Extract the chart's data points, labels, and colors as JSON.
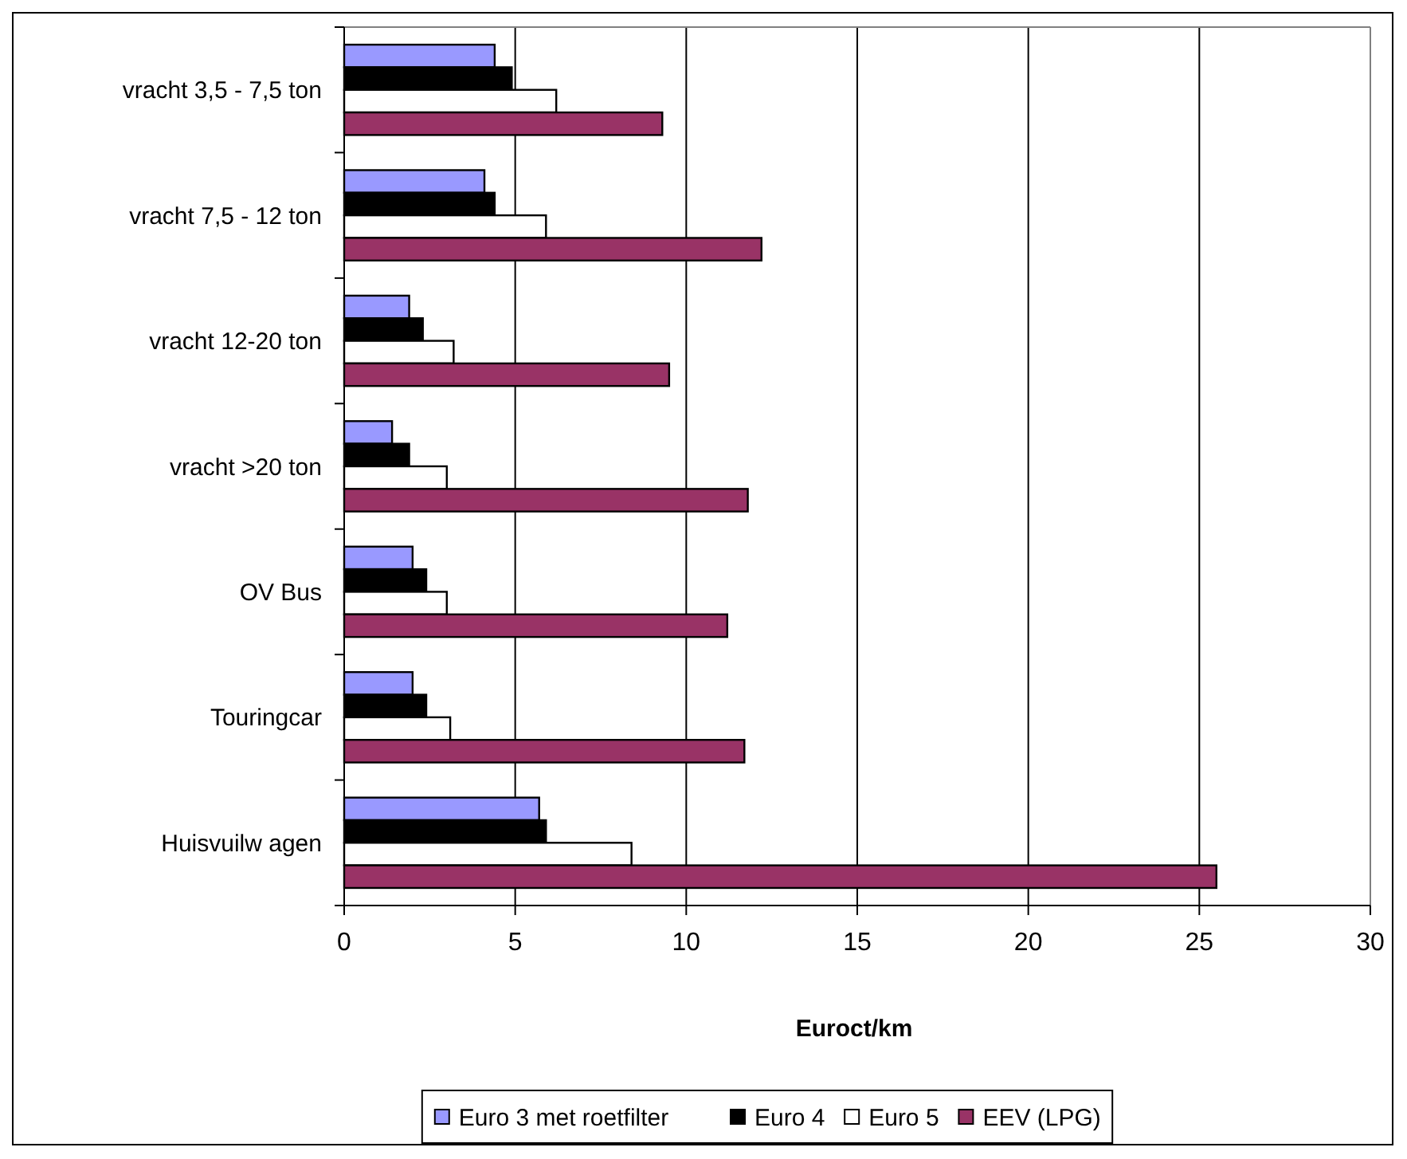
{
  "chart_data": {
    "type": "bar",
    "orientation": "horizontal",
    "xlabel": "Euroct/km",
    "categories": [
      "vracht 3,5 - 7,5 ton",
      "vracht 7,5 - 12 ton",
      "vracht 12-20 ton",
      "vracht >20 ton",
      "OV Bus",
      "Touringcar",
      "Huisvuilw agen"
    ],
    "series": [
      {
        "name": "Euro 3 met roetfilter",
        "color": "#9999ff",
        "values": [
          4.4,
          4.1,
          1.9,
          1.4,
          2.0,
          2.0,
          5.7
        ]
      },
      {
        "name": "Euro 4",
        "color": "#000000",
        "values": [
          4.9,
          4.4,
          2.3,
          1.9,
          2.4,
          2.4,
          5.9
        ]
      },
      {
        "name": "Euro 5",
        "color": "#ffffff",
        "values": [
          6.2,
          5.9,
          3.2,
          3.0,
          3.0,
          3.1,
          8.4
        ]
      },
      {
        "name": "EEV (LPG)",
        "color": "#993366",
        "values": [
          9.3,
          12.2,
          9.5,
          11.8,
          11.2,
          11.7,
          25.5
        ]
      }
    ],
    "xlim": [
      0,
      30
    ],
    "xticks": [
      0,
      5,
      10,
      15,
      20,
      25,
      30
    ],
    "grid": "x",
    "legend": "bottom"
  }
}
